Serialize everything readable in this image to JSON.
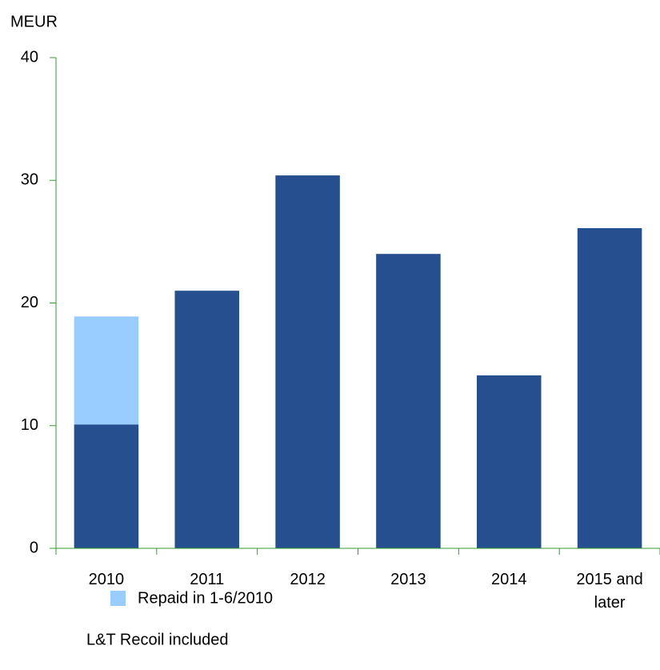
{
  "chart_data": {
    "type": "bar",
    "stacked": true,
    "y_label": "MEUR",
    "note": "L&T Recoil included",
    "categories": [
      "2010",
      "2011",
      "2012",
      "2013",
      "2014",
      "2015 and later"
    ],
    "series": [
      {
        "color": "#264f8f",
        "values": [
          10.1,
          21,
          30.4,
          24.0,
          14.1,
          26.1
        ]
      },
      {
        "name": "Repaid in 1-6/2010",
        "color": "#99ccff",
        "values": [
          8.8,
          null,
          null,
          null,
          null,
          null
        ]
      }
    ],
    "ylim": [
      0,
      40
    ],
    "yticks": [
      0,
      10,
      20,
      30,
      40
    ],
    "grid": false,
    "axis_color": "#339933"
  }
}
